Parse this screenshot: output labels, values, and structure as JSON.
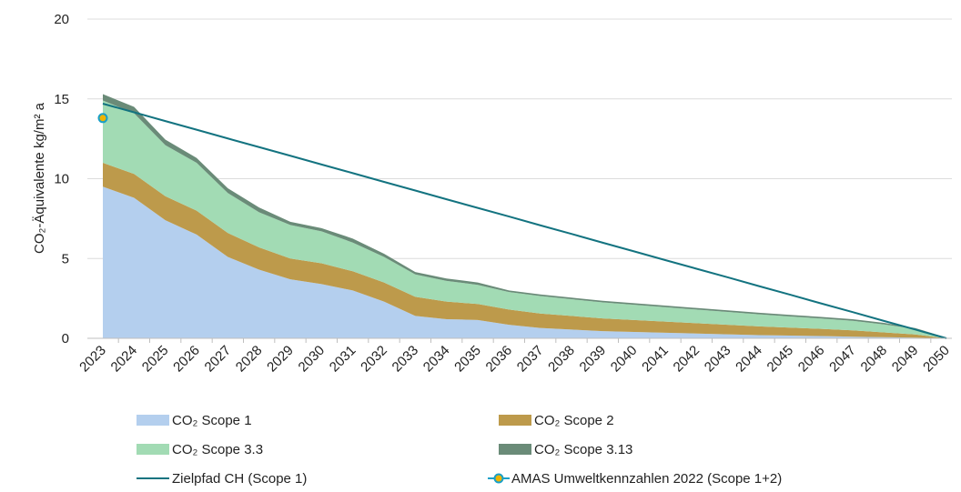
{
  "chart_data": {
    "type": "area",
    "title": "",
    "ylabel": "CO₂-Äquivalente kg/m² a",
    "xlabel": "",
    "ylim": [
      0,
      20
    ],
    "yticks": [
      0,
      5,
      10,
      15,
      20
    ],
    "grid": true,
    "legend_position": "bottom",
    "x": [
      "2023",
      "2024",
      "2025",
      "2026",
      "2027",
      "2028",
      "2029",
      "2030",
      "2031",
      "2032",
      "2033",
      "2034",
      "2035",
      "2036",
      "2037",
      "2038",
      "2039",
      "2040",
      "2041",
      "2042",
      "2043",
      "2044",
      "2045",
      "2046",
      "2047",
      "2048",
      "2049",
      "2050"
    ],
    "series": [
      {
        "name": "CO₂ Scope 1",
        "kind": "area",
        "color": "#b4cfee",
        "values": [
          9.5,
          8.8,
          7.4,
          6.5,
          5.1,
          4.3,
          3.7,
          3.4,
          3.0,
          2.3,
          1.4,
          1.2,
          1.15,
          0.85,
          0.65,
          0.55,
          0.45,
          0.4,
          0.35,
          0.3,
          0.25,
          0.2,
          0.17,
          0.14,
          0.1,
          0.07,
          0.04,
          0.0
        ]
      },
      {
        "name": "CO₂ Scope 2",
        "kind": "area",
        "color": "#bd9a4b",
        "values": [
          1.5,
          1.5,
          1.5,
          1.5,
          1.5,
          1.4,
          1.3,
          1.3,
          1.2,
          1.2,
          1.2,
          1.1,
          1.0,
          0.95,
          0.9,
          0.85,
          0.8,
          0.75,
          0.7,
          0.65,
          0.6,
          0.55,
          0.5,
          0.45,
          0.4,
          0.3,
          0.2,
          0.0
        ]
      },
      {
        "name": "CO₂ Scope 3.3",
        "kind": "area",
        "color": "#a2dbb4",
        "values": [
          3.9,
          3.8,
          3.2,
          3.0,
          2.5,
          2.2,
          2.1,
          2.0,
          1.8,
          1.6,
          1.4,
          1.3,
          1.2,
          1.1,
          1.1,
          1.05,
          1.0,
          0.95,
          0.9,
          0.85,
          0.8,
          0.75,
          0.7,
          0.65,
          0.6,
          0.5,
          0.35,
          0.05
        ]
      },
      {
        "name": "CO₂ Scope 3.13",
        "kind": "area",
        "color": "#6a8b78",
        "values": [
          0.4,
          0.4,
          0.35,
          0.3,
          0.3,
          0.3,
          0.2,
          0.2,
          0.25,
          0.2,
          0.15,
          0.15,
          0.15,
          0.1,
          0.1,
          0.1,
          0.1,
          0.1,
          0.1,
          0.1,
          0.1,
          0.1,
          0.1,
          0.1,
          0.1,
          0.1,
          0.05,
          0.0
        ]
      },
      {
        "name": "Zielpfad CH (Scope 1)",
        "kind": "line",
        "color": "#137380",
        "values": [
          14.7,
          14.16,
          13.61,
          13.07,
          12.52,
          11.98,
          11.44,
          10.89,
          10.35,
          9.8,
          9.26,
          8.71,
          8.17,
          7.63,
          7.08,
          6.54,
          5.99,
          5.45,
          4.9,
          4.36,
          3.82,
          3.27,
          2.73,
          2.18,
          1.64,
          1.09,
          0.55,
          0.0
        ]
      },
      {
        "name": "AMAS Umweltkennzahlen 2022 (Scope 1+2)",
        "kind": "point",
        "color": "#1aa0c8",
        "marker_color": "#f0b400",
        "points": [
          {
            "x": "2023",
            "y": 13.8
          }
        ]
      }
    ],
    "legend": [
      "CO₂ Scope 1",
      "CO₂ Scope 2",
      "CO₂ Scope 3.3",
      "CO₂ Scope 3.13",
      "Zielpfad CH (Scope 1)",
      "AMAS Umweltkennzahlen 2022 (Scope 1+2)"
    ]
  }
}
